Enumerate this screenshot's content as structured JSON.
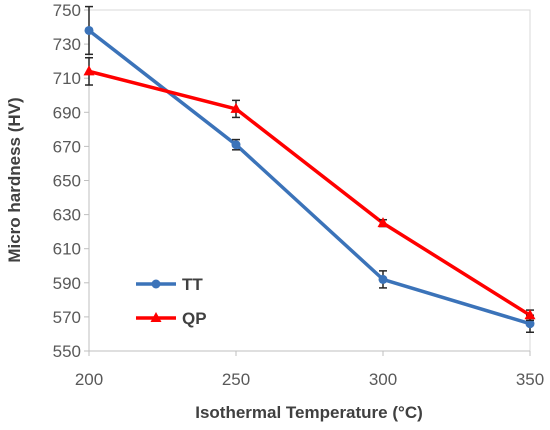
{
  "chart_data": {
    "type": "line",
    "title": "",
    "xlabel": "Isothermal Temperature (°C)",
    "ylabel": "Micro hardness (HV)",
    "x": [
      200,
      250,
      300,
      350
    ],
    "xlim": [
      200,
      350
    ],
    "xticks": [
      200,
      250,
      300,
      350
    ],
    "ylim": [
      550,
      750
    ],
    "yticks": [
      550,
      570,
      590,
      610,
      630,
      650,
      670,
      690,
      710,
      730,
      750
    ],
    "grid": false,
    "legend_position": "bottom-left",
    "series": [
      {
        "name": "TT",
        "values": [
          738,
          671,
          592,
          566
        ],
        "errors": [
          14,
          3,
          5,
          5
        ],
        "marker": "circle",
        "color": "#3b73b9"
      },
      {
        "name": "QP",
        "values": [
          714,
          692,
          625,
          571
        ],
        "errors": [
          8,
          5,
          2,
          3
        ],
        "marker": "triangle",
        "color": "#ff0000"
      }
    ]
  }
}
